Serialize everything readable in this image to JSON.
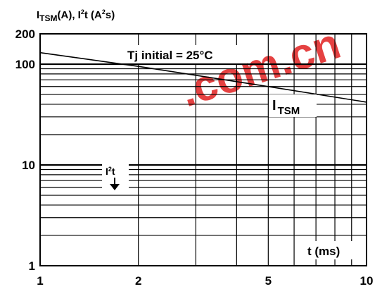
{
  "chart_data": {
    "type": "line",
    "ylabel_parts": {
      "base1": "I",
      "sub1": "TSM",
      "mid": "(A), I",
      "sup1": "2",
      "mid2": "t (A",
      "sup2": "2",
      "end": "s)"
    },
    "xlabel": "t (ms)",
    "condition": "Tj initial = 25°C",
    "x_scale": "log",
    "y_scale": "log",
    "xlim": [
      1,
      10
    ],
    "ylim": [
      1,
      200
    ],
    "x_ticks": [
      {
        "value": 1,
        "label": "1"
      },
      {
        "value": 2,
        "label": "2"
      },
      {
        "value": 5,
        "label": "5"
      },
      {
        "value": 10,
        "label": "10"
      }
    ],
    "y_ticks": [
      {
        "value": 1,
        "label": "1"
      },
      {
        "value": 10,
        "label": "10"
      },
      {
        "value": 100,
        "label": "100"
      },
      {
        "value": 200,
        "label": "200"
      }
    ],
    "grid": true,
    "series": [
      {
        "name": "I TSM",
        "label_base": "I",
        "label_sub": "TSM",
        "color": "#000000",
        "x": [
          1,
          2,
          5,
          10
        ],
        "y": [
          130,
          95,
          60,
          42
        ]
      }
    ],
    "annotations": {
      "i2t_label_base": "I",
      "i2t_label_sup": "2",
      "i2t_label_end": "t",
      "arrow": "down"
    }
  },
  "watermark": {
    "text": ".com.cn",
    "color": "#e01010"
  }
}
